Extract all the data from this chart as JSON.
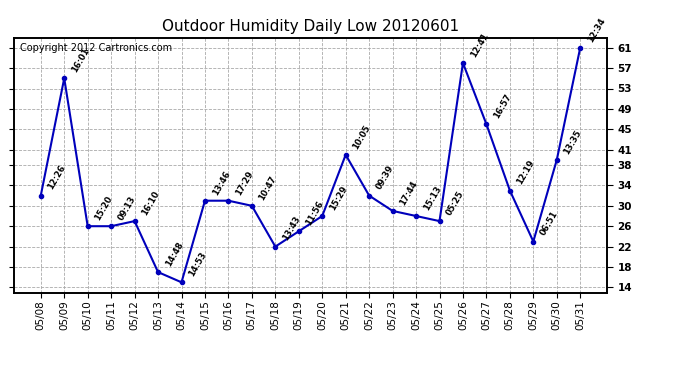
{
  "title": "Outdoor Humidity Daily Low 20120601",
  "copyright_text": "Copyright 2012 Cartronics.com",
  "dates": [
    "05/08",
    "05/09",
    "05/10",
    "05/11",
    "05/12",
    "05/13",
    "05/14",
    "05/15",
    "05/16",
    "05/17",
    "05/18",
    "05/19",
    "05/20",
    "05/21",
    "05/22",
    "05/23",
    "05/24",
    "05/25",
    "05/26",
    "05/27",
    "05/28",
    "05/29",
    "05/30",
    "05/31"
  ],
  "values": [
    32,
    55,
    26,
    26,
    27,
    17,
    15,
    31,
    31,
    30,
    22,
    25,
    28,
    40,
    32,
    29,
    28,
    27,
    58,
    46,
    33,
    23,
    39,
    61
  ],
  "labels": [
    "12:26",
    "16:01",
    "15:20",
    "09:13",
    "16:10",
    "14:48",
    "14:53",
    "13:46",
    "17:29",
    "10:47",
    "13:43",
    "11:56",
    "15:29",
    "10:05",
    "09:39",
    "17:44",
    "15:13",
    "05:25",
    "12:41",
    "16:57",
    "12:19",
    "06:51",
    "13:35",
    "12:34"
  ],
  "yticks": [
    14,
    18,
    22,
    26,
    30,
    34,
    38,
    41,
    45,
    49,
    53,
    57,
    61
  ],
  "ylim": [
    13,
    63
  ],
  "line_color": "#0000bb",
  "marker_color": "#0000bb",
  "grid_color": "#aaaaaa",
  "bg_color": "#ffffff",
  "plot_bg_color": "#ffffff",
  "title_fontsize": 11,
  "label_fontsize": 6.0,
  "tick_fontsize": 7.5,
  "copyright_fontsize": 7.0
}
